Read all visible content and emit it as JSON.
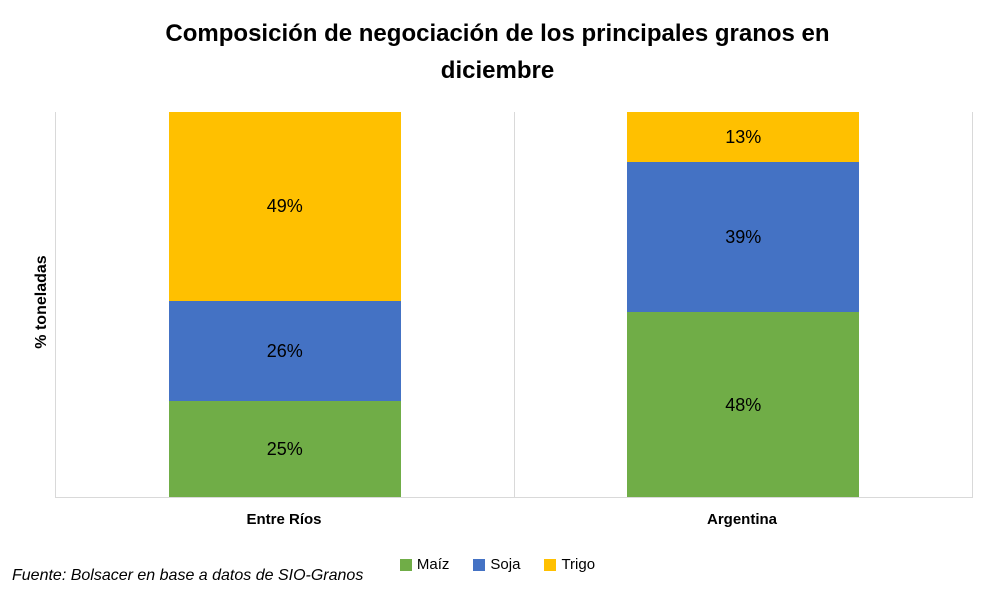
{
  "title_lines": [
    "Composición de negociación de los principales granos en",
    "diciembre"
  ],
  "y_axis_label": "% toneladas",
  "source_note": "Fuente: Bolsacer en base a datos de SIO-Granos",
  "chart_data": {
    "type": "bar",
    "subtype": "stacked-100-percent",
    "title": "Composición de negociación de los principales granos en diciembre",
    "xlabel": "",
    "ylabel": "% toneladas",
    "unit": "%",
    "ylim": [
      0,
      100
    ],
    "grid": false,
    "legend_position": "bottom",
    "categories": [
      "Entre Ríos",
      "Argentina"
    ],
    "series": [
      {
        "name": "Maíz",
        "color": "#70AD47",
        "values": [
          25,
          48
        ],
        "labels": [
          "25%",
          "48%"
        ]
      },
      {
        "name": "Soja",
        "color": "#4472C4",
        "values": [
          26,
          39
        ],
        "labels": [
          "26%",
          "39%"
        ]
      },
      {
        "name": "Trigo",
        "color": "#FFC000",
        "values": [
          49,
          13
        ],
        "labels": [
          "49%",
          "13%"
        ]
      }
    ]
  }
}
